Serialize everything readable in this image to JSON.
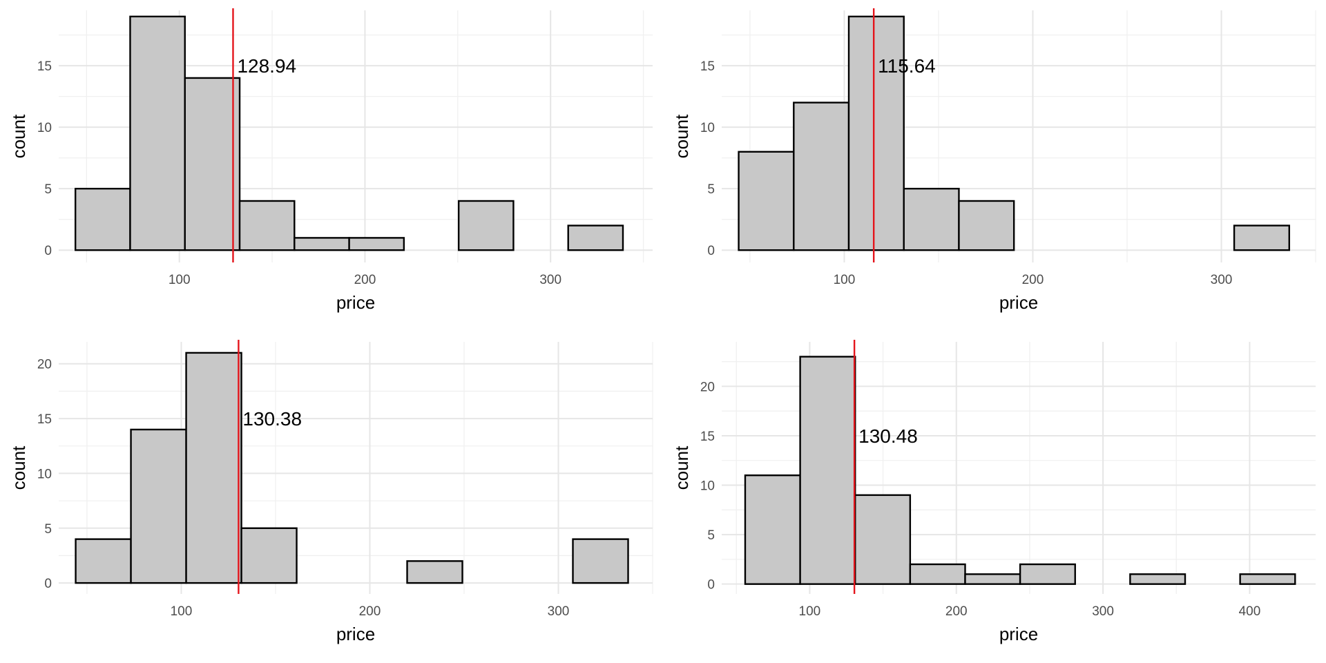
{
  "chart_data": [
    {
      "type": "bar",
      "xlabel": "price",
      "ylabel": "count",
      "xlim": [
        35,
        355
      ],
      "ylim": [
        -1,
        19.5
      ],
      "xticks": [
        100,
        200,
        300
      ],
      "yticks": [
        0,
        5,
        10,
        15
      ],
      "grid": true,
      "bins": [
        {
          "x0": 44,
          "x1": 73.5,
          "count": 5
        },
        {
          "x0": 73.5,
          "x1": 103,
          "count": 19
        },
        {
          "x0": 103,
          "x1": 132.5,
          "count": 14
        },
        {
          "x0": 132.5,
          "x1": 162,
          "count": 4
        },
        {
          "x0": 162,
          "x1": 191.5,
          "count": 1
        },
        {
          "x0": 191.5,
          "x1": 221,
          "count": 1
        },
        {
          "x0": 221,
          "x1": 250.5,
          "count": 0
        },
        {
          "x0": 250.5,
          "x1": 280,
          "count": 4
        },
        {
          "x0": 280,
          "x1": 309.5,
          "count": 0
        },
        {
          "x0": 309.5,
          "x1": 339,
          "count": 2
        }
      ],
      "vline": 128.94,
      "vline_label": "128.94",
      "annotation_y": 15
    },
    {
      "type": "bar",
      "xlabel": "price",
      "ylabel": "count",
      "xlim": [
        35,
        350
      ],
      "ylim": [
        -1,
        19.5
      ],
      "xticks": [
        100,
        200,
        300
      ],
      "yticks": [
        0,
        5,
        10,
        15
      ],
      "grid": true,
      "bins": [
        {
          "x0": 44,
          "x1": 73.2,
          "count": 8
        },
        {
          "x0": 73.2,
          "x1": 102.4,
          "count": 12
        },
        {
          "x0": 102.4,
          "x1": 131.6,
          "count": 19
        },
        {
          "x0": 131.6,
          "x1": 160.8,
          "count": 5
        },
        {
          "x0": 160.8,
          "x1": 190,
          "count": 4
        },
        {
          "x0": 190,
          "x1": 219.2,
          "count": 0
        },
        {
          "x0": 219.2,
          "x1": 248.4,
          "count": 0
        },
        {
          "x0": 248.4,
          "x1": 277.6,
          "count": 0
        },
        {
          "x0": 277.6,
          "x1": 306.8,
          "count": 0
        },
        {
          "x0": 306.8,
          "x1": 336,
          "count": 2
        }
      ],
      "vline": 115.64,
      "vline_label": "115.64",
      "annotation_y": 15
    },
    {
      "type": "bar",
      "xlabel": "price",
      "ylabel": "count",
      "xlim": [
        35,
        350
      ],
      "ylim": [
        -1,
        22
      ],
      "xticks": [
        100,
        200,
        300
      ],
      "yticks": [
        0,
        5,
        10,
        15,
        20
      ],
      "grid": true,
      "bins": [
        {
          "x0": 44,
          "x1": 73.3,
          "count": 4
        },
        {
          "x0": 73.3,
          "x1": 102.6,
          "count": 14
        },
        {
          "x0": 102.6,
          "x1": 131.9,
          "count": 21
        },
        {
          "x0": 131.9,
          "x1": 161.2,
          "count": 5
        },
        {
          "x0": 161.2,
          "x1": 190.5,
          "count": 0
        },
        {
          "x0": 190.5,
          "x1": 219.8,
          "count": 0
        },
        {
          "x0": 219.8,
          "x1": 249.1,
          "count": 2
        },
        {
          "x0": 249.1,
          "x1": 278.4,
          "count": 0
        },
        {
          "x0": 278.4,
          "x1": 307.7,
          "count": 0
        },
        {
          "x0": 307.7,
          "x1": 337,
          "count": 4
        }
      ],
      "vline": 130.38,
      "vline_label": "130.38",
      "annotation_y": 15
    },
    {
      "type": "bar",
      "xlabel": "price",
      "ylabel": "count",
      "xlim": [
        40,
        445
      ],
      "ylim": [
        -1,
        24.5
      ],
      "xticks": [
        100,
        200,
        300,
        400
      ],
      "yticks": [
        0,
        5,
        10,
        15,
        20
      ],
      "grid": true,
      "bins": [
        {
          "x0": 56,
          "x1": 93.5,
          "count": 11
        },
        {
          "x0": 93.5,
          "x1": 131,
          "count": 23
        },
        {
          "x0": 131,
          "x1": 168.5,
          "count": 9
        },
        {
          "x0": 168.5,
          "x1": 206,
          "count": 2
        },
        {
          "x0": 206,
          "x1": 243.5,
          "count": 1
        },
        {
          "x0": 243.5,
          "x1": 281,
          "count": 2
        },
        {
          "x0": 281,
          "x1": 318.5,
          "count": 0
        },
        {
          "x0": 318.5,
          "x1": 356,
          "count": 1
        },
        {
          "x0": 356,
          "x1": 393.5,
          "count": 0
        },
        {
          "x0": 393.5,
          "x1": 431,
          "count": 1
        }
      ],
      "vline": 130.48,
      "vline_label": "130.48",
      "annotation_y": 15
    }
  ]
}
